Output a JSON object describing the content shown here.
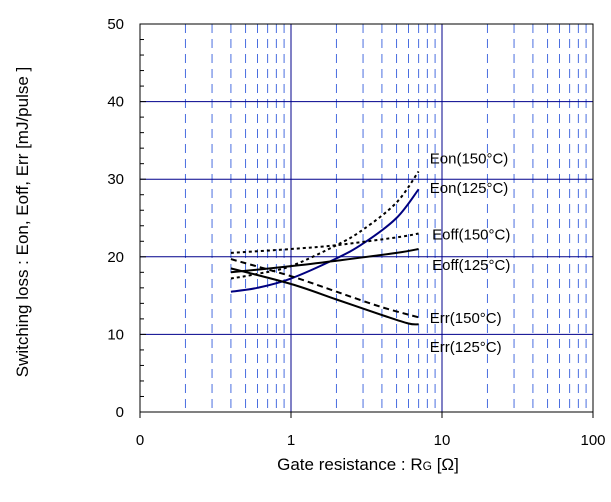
{
  "chart_data": {
    "type": "line",
    "title": "",
    "xlabel": "Gate resistance : RG [Ω]",
    "xlabel_parts": {
      "before": "Gate resistance : R",
      "subscript": "G",
      "after": " [Ω]"
    },
    "ylabel": "Switching loss : Eon, Eoff, Err [mJ/pulse ]",
    "x_scale": "log",
    "xlim": [
      0.1,
      100
    ],
    "ylim": [
      0,
      50
    ],
    "grid": true,
    "legend": "labels next to curves",
    "x_ticks": [
      {
        "value": 0.1,
        "label": "0"
      },
      {
        "value": 1,
        "label": "1"
      },
      {
        "value": 10,
        "label": "10"
      },
      {
        "value": 100,
        "label": "100"
      }
    ],
    "y_ticks": [
      {
        "value": 0,
        "label": "0"
      },
      {
        "value": 10,
        "label": "10"
      },
      {
        "value": 20,
        "label": "20"
      },
      {
        "value": 30,
        "label": "30"
      },
      {
        "value": 40,
        "label": "40"
      },
      {
        "value": 50,
        "label": "50"
      }
    ],
    "series": [
      {
        "name": "Eon(150°C)",
        "color": "#000000",
        "dash": "short",
        "points": [
          [
            0.4,
            17.2
          ],
          [
            0.6,
            17.8
          ],
          [
            1,
            18.8
          ],
          [
            2,
            21.5
          ],
          [
            3,
            23.5
          ],
          [
            5,
            27
          ],
          [
            7,
            31
          ]
        ]
      },
      {
        "name": "Eon(125°C)",
        "color": "#00007f",
        "dash": "solid",
        "points": [
          [
            0.4,
            15.5
          ],
          [
            0.6,
            16
          ],
          [
            1,
            17.2
          ],
          [
            2,
            19.8
          ],
          [
            3,
            21.7
          ],
          [
            5,
            25
          ],
          [
            7,
            28.7
          ]
        ]
      },
      {
        "name": "Eoff(150°C)",
        "color": "#000000",
        "dash": "short",
        "points": [
          [
            0.4,
            20.5
          ],
          [
            1,
            21
          ],
          [
            2,
            21.5
          ],
          [
            5,
            22.5
          ],
          [
            7,
            23
          ]
        ]
      },
      {
        "name": "Eoff(125°C)",
        "color": "#000000",
        "dash": "solid",
        "points": [
          [
            0.4,
            18
          ],
          [
            1,
            18.8
          ],
          [
            2,
            19.5
          ],
          [
            5,
            20.5
          ],
          [
            7,
            21
          ]
        ]
      },
      {
        "name": "Err(150°C)",
        "color": "#000000",
        "dash": "medium",
        "points": [
          [
            0.4,
            19.7
          ],
          [
            1,
            17.5
          ],
          [
            2,
            15.5
          ],
          [
            4,
            13.5
          ],
          [
            7,
            12.2
          ]
        ]
      },
      {
        "name": "Err(125°C)",
        "color": "#000000",
        "dash": "solid",
        "points": [
          [
            0.4,
            18.5
          ],
          [
            1,
            16.5
          ],
          [
            2,
            14.5
          ],
          [
            4,
            12.5
          ],
          [
            6,
            11.4
          ],
          [
            7,
            11.3
          ]
        ]
      }
    ],
    "annotations": [
      {
        "text": "Eon(150°C)",
        "x": 8.3,
        "y": 32
      },
      {
        "text": "Eon(125°C)",
        "x": 8.3,
        "y": 28.2
      },
      {
        "text": "Eoff(150°C)",
        "x": 8.6,
        "y": 22.2
      },
      {
        "text": "Eoff(125°C)",
        "x": 8.6,
        "y": 18.3
      },
      {
        "text": "Err(150°C)",
        "x": 8.3,
        "y": 11.5
      },
      {
        "text": "Err(125°C)",
        "x": 8.3,
        "y": 7.7
      }
    ]
  }
}
